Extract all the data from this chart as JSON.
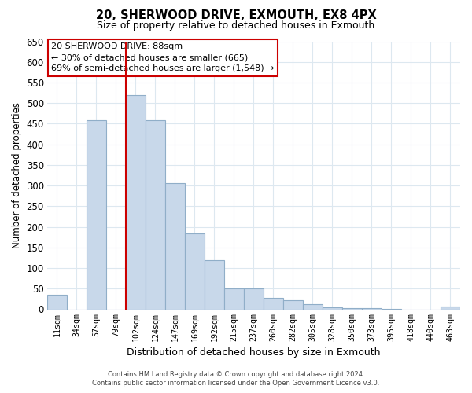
{
  "title": "20, SHERWOOD DRIVE, EXMOUTH, EX8 4PX",
  "subtitle": "Size of property relative to detached houses in Exmouth",
  "xlabel": "Distribution of detached houses by size in Exmouth",
  "ylabel": "Number of detached properties",
  "bar_labels": [
    "11sqm",
    "34sqm",
    "57sqm",
    "79sqm",
    "102sqm",
    "124sqm",
    "147sqm",
    "169sqm",
    "192sqm",
    "215sqm",
    "237sqm",
    "260sqm",
    "282sqm",
    "305sqm",
    "328sqm",
    "350sqm",
    "373sqm",
    "395sqm",
    "418sqm",
    "440sqm",
    "463sqm"
  ],
  "bar_values": [
    35,
    0,
    458,
    0,
    520,
    458,
    305,
    183,
    120,
    50,
    50,
    28,
    22,
    13,
    5,
    3,
    2,
    1,
    0,
    0,
    7
  ],
  "bar_color": "#c8d8ea",
  "bar_edge_color": "#90aec8",
  "vline_x": 4.0,
  "vline_color": "#cc0000",
  "ylim": [
    0,
    650
  ],
  "yticks": [
    0,
    50,
    100,
    150,
    200,
    250,
    300,
    350,
    400,
    450,
    500,
    550,
    600,
    650
  ],
  "annotation_title": "20 SHERWOOD DRIVE: 88sqm",
  "annotation_line1": "← 30% of detached houses are smaller (665)",
  "annotation_line2": "69% of semi-detached houses are larger (1,548) →",
  "annotation_box_color": "#ffffff",
  "annotation_box_edge": "#cc0000",
  "footer_line1": "Contains HM Land Registry data © Crown copyright and database right 2024.",
  "footer_line2": "Contains public sector information licensed under the Open Government Licence v3.0.",
  "background_color": "#ffffff",
  "grid_color": "#dde8f0"
}
